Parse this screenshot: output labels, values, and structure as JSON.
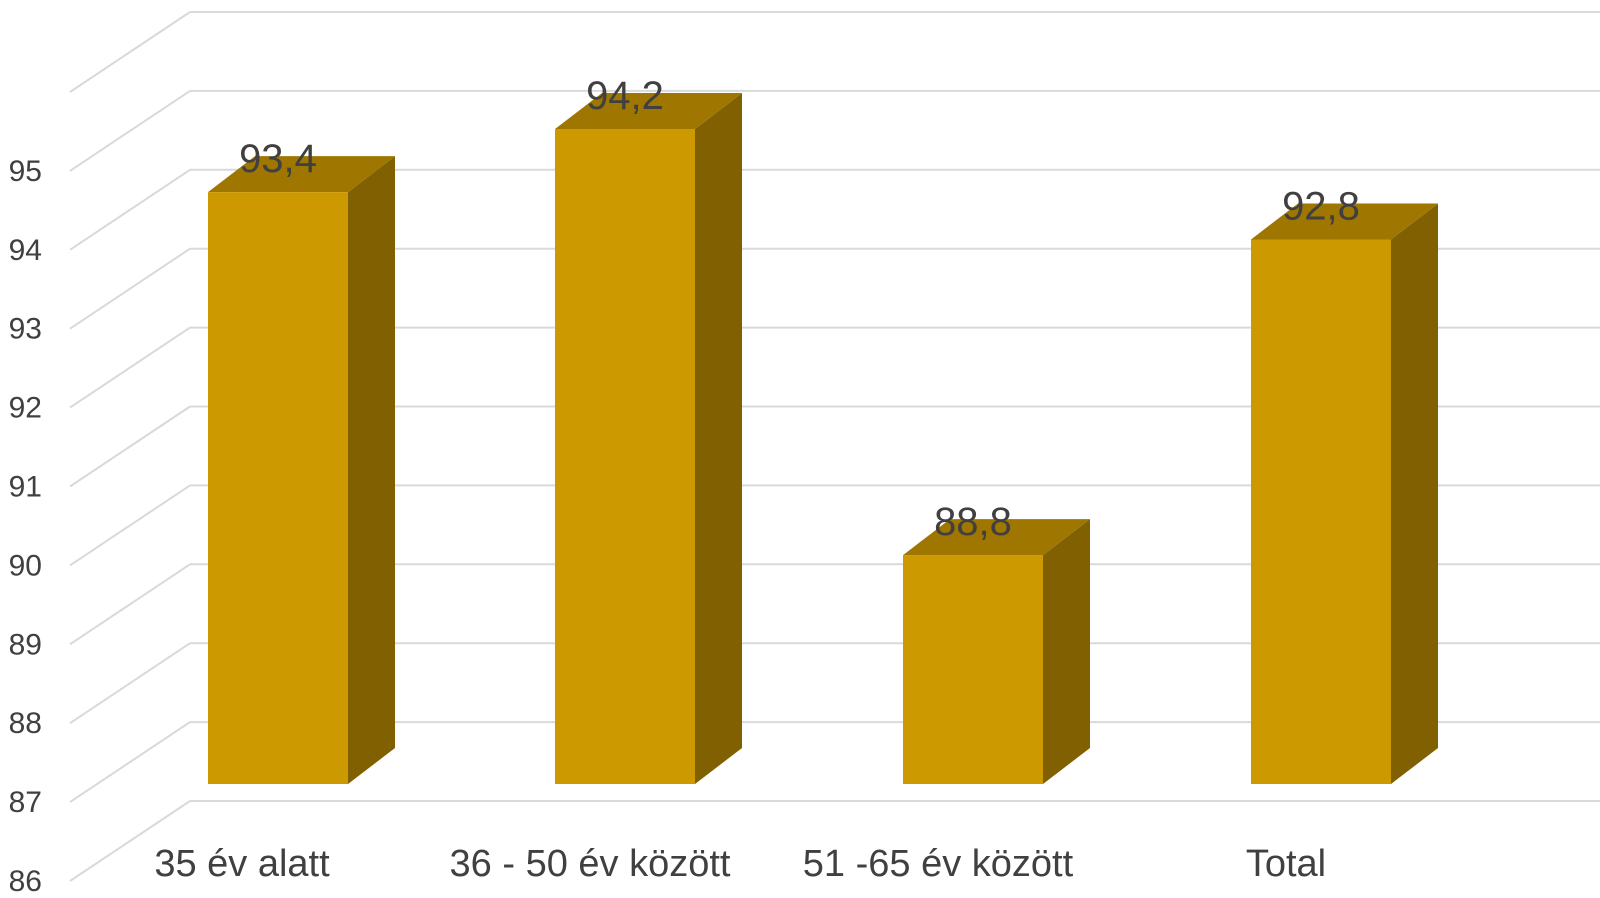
{
  "chart_data": {
    "type": "bar",
    "categories": [
      "35 év alatt",
      "36 - 50 év között",
      "51 -65 év között",
      "Total"
    ],
    "values": [
      93.4,
      94.2,
      88.8,
      92.8
    ],
    "value_labels": [
      "93,4",
      "94,2",
      "88,8",
      "92,8"
    ],
    "ylim": [
      86,
      95
    ],
    "yticks": [
      86,
      87,
      88,
      89,
      90,
      91,
      92,
      93,
      94,
      95
    ],
    "grid": true,
    "style": "3d-column",
    "colors": {
      "front": "#CC9900",
      "top": "#9E7600",
      "side": "#806000",
      "grid": "#d9d9d9",
      "text": "#404040"
    }
  }
}
